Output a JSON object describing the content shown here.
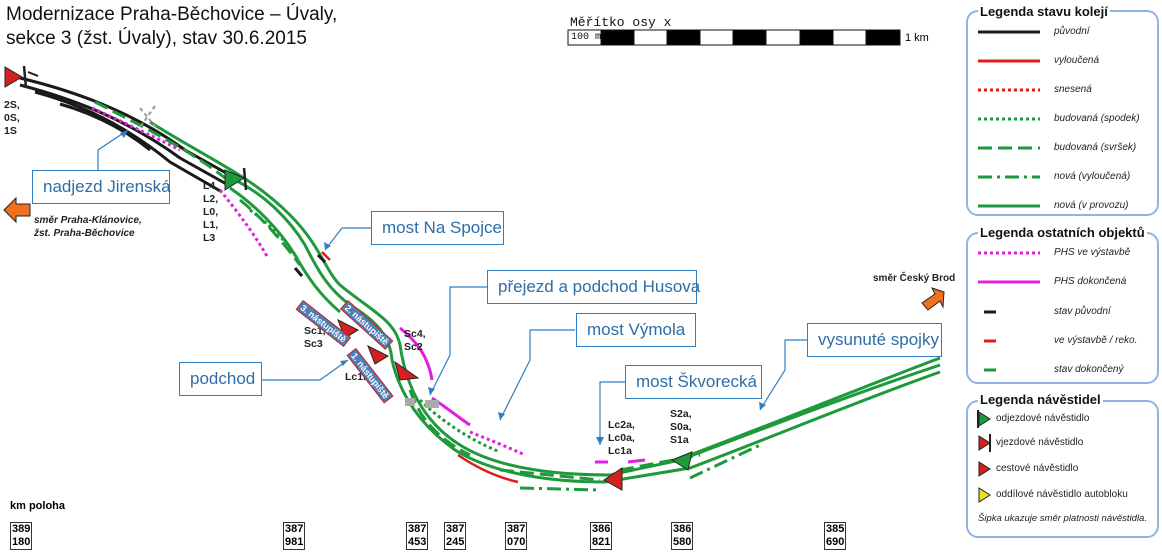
{
  "title": {
    "line1": "Modernizace Praha-Běchovice – Úvaly,",
    "line2": "sekce 3 (žst. Úvaly), stav 30.6.2015"
  },
  "scale": {
    "title": "Měřítko osy x",
    "start_label": "100 m",
    "end_label": "1 km"
  },
  "callouts": {
    "nadjezd": "nadjezd Jirenská",
    "spojce": "most Na Spojce",
    "husova": "přejezd a podchod Husova",
    "vymola": "most Výmola",
    "podchod": "podchod",
    "skvorecka": "most Škvorecká",
    "spojky": "vysunuté spojky"
  },
  "track_labels": {
    "west": "2S,\n0S,\n1S",
    "l_group": "L4,\nL2,\nL0,\nL1,\nL3",
    "sc13": "Sc1,\nSc3",
    "sc42": "Sc4,\nSc2",
    "lc1b": "Lc1b",
    "lc": "Lc2a,\nLc0a,\nLc1a",
    "s": "S2a,\nS0a,\nS1a"
  },
  "section_labels": {
    "a": "3. nástupiště",
    "b": "2. nástupiště",
    "c": "1. nástupiště"
  },
  "directions": {
    "west": "směr Praha-Klánovice,\nžst. Praha-Běchovice",
    "east": "směr Český Brod"
  },
  "km": {
    "heading": "km poloha",
    "marks": [
      "389\n180",
      "387\n981",
      "387\n453",
      "387\n245",
      "387\n070",
      "386\n821",
      "386\n580",
      "385\n690"
    ]
  },
  "legend_tracks": {
    "title": "Legenda stavu kolejí",
    "items": [
      "původní",
      "vyloučená",
      "snesená",
      "budovaná (spodek)",
      "budovaná (svršek)",
      "nová (vyloučená)",
      "nová (v provozu)"
    ]
  },
  "legend_objects": {
    "title": "Legenda ostatních objektů",
    "items": [
      "PHS ve výstavbě",
      "PHS dokončená",
      "stav původní",
      "ve výstavbě / reko.",
      "stav dokončený"
    ]
  },
  "legend_signals": {
    "title": "Legenda návěstidel",
    "items": [
      "odjezdové návěstidlo",
      "vjezdové návěstidlo",
      "cestové návěstidlo",
      "oddílové návěstidlo autobloku"
    ],
    "note": "Šipka ukazuje směr platnosti návěstidla."
  },
  "colors": {
    "original": "#1a1a1a",
    "excluded": "#e01b1b",
    "new": "#1e9a3c",
    "phs": "#e020e0",
    "callout": "#2e7fc2",
    "signal_red": "#d42020",
    "orange": "#f07020",
    "legend_border": "#8fb4e3"
  }
}
